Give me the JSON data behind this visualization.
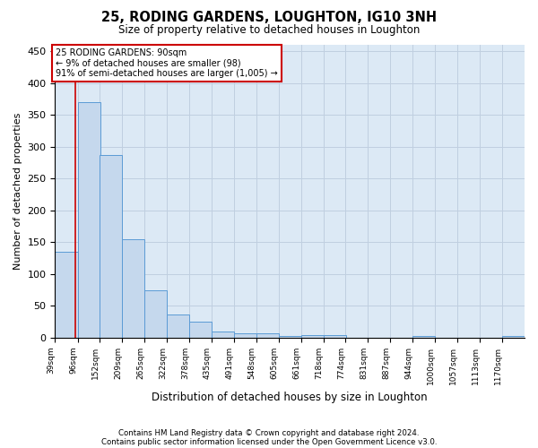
{
  "title": "25, RODING GARDENS, LOUGHTON, IG10 3NH",
  "subtitle": "Size of property relative to detached houses in Loughton",
  "xlabel": "Distribution of detached houses by size in Loughton",
  "ylabel": "Number of detached properties",
  "categories": [
    "39sqm",
    "96sqm",
    "152sqm",
    "209sqm",
    "265sqm",
    "322sqm",
    "378sqm",
    "435sqm",
    "491sqm",
    "548sqm",
    "605sqm",
    "661sqm",
    "718sqm",
    "774sqm",
    "831sqm",
    "887sqm",
    "944sqm",
    "1000sqm",
    "1057sqm",
    "1113sqm",
    "1170sqm"
  ],
  "values": [
    135,
    370,
    287,
    155,
    74,
    36,
    25,
    10,
    7,
    7,
    3,
    4,
    4,
    0,
    0,
    0,
    2,
    0,
    0,
    0,
    2
  ],
  "bar_color": "#c5d8ed",
  "bar_edge_color": "#5b9bd5",
  "annotation_text": "25 RODING GARDENS: 90sqm\n← 9% of detached houses are smaller (98)\n91% of semi-detached houses are larger (1,005) →",
  "annotation_box_color": "#cc0000",
  "red_line_x": 90,
  "ylim": [
    0,
    460
  ],
  "yticks": [
    0,
    50,
    100,
    150,
    200,
    250,
    300,
    350,
    400,
    450
  ],
  "footer_line1": "Contains HM Land Registry data © Crown copyright and database right 2024.",
  "footer_line2": "Contains public sector information licensed under the Open Government Licence v3.0.",
  "bg_color": "#ffffff",
  "plot_bg_color": "#dce9f5",
  "grid_color": "#c0cfe0"
}
